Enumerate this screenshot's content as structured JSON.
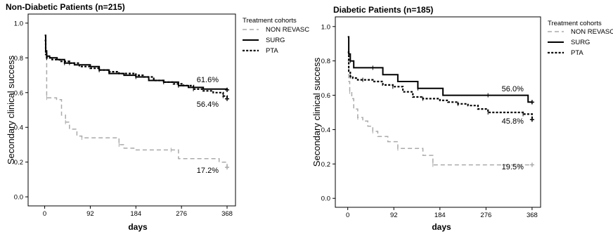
{
  "chart_data": [
    {
      "type": "line",
      "title": "Non-Diabetic Patients (n=215)",
      "xlabel": "days",
      "ylabel": "Secondary clinical success",
      "xlim": [
        -15,
        385
      ],
      "ylim": [
        -0.04,
        1.04
      ],
      "xticks": [
        "0",
        "92",
        "184",
        "276",
        "368"
      ],
      "yticks": [
        "0.0",
        "0.2",
        "0.4",
        "0.6",
        "0.8",
        "1.0"
      ],
      "legend": {
        "title": "Treatment cohorts",
        "position": "top-right-outside"
      },
      "series": [
        {
          "name": "NON REVASC",
          "color": "#aaaaaa",
          "dash": "dash",
          "x": [
            0,
            2,
            4,
            24,
            34,
            42,
            50,
            65,
            75,
            88,
            120,
            150,
            160,
            180,
            255,
            270,
            352,
            368
          ],
          "y": [
            0.92,
            0.82,
            0.57,
            0.56,
            0.47,
            0.43,
            0.39,
            0.35,
            0.34,
            0.34,
            0.34,
            0.3,
            0.28,
            0.27,
            0.27,
            0.22,
            0.2,
            0.17
          ],
          "end_label": "17.2%"
        },
        {
          "name": "SURG",
          "color": "#000000",
          "dash": "solid",
          "x": [
            0,
            2,
            4,
            10,
            25,
            40,
            60,
            92,
            110,
            130,
            160,
            184,
            210,
            240,
            270,
            290,
            320,
            368
          ],
          "y": [
            0.93,
            0.84,
            0.81,
            0.8,
            0.79,
            0.77,
            0.76,
            0.75,
            0.73,
            0.71,
            0.7,
            0.69,
            0.67,
            0.66,
            0.64,
            0.63,
            0.62,
            0.616
          ],
          "end_label": "61.6%"
        },
        {
          "name": "PTA",
          "color": "#000000",
          "dash": "dot",
          "x": [
            0,
            2,
            4,
            15,
            30,
            50,
            70,
            92,
            110,
            130,
            150,
            184,
            200,
            220,
            240,
            260,
            280,
            300,
            320,
            340,
            360,
            368
          ],
          "y": [
            0.9,
            0.82,
            0.8,
            0.79,
            0.78,
            0.77,
            0.75,
            0.74,
            0.73,
            0.72,
            0.71,
            0.7,
            0.69,
            0.67,
            0.66,
            0.65,
            0.64,
            0.62,
            0.61,
            0.6,
            0.58,
            0.564
          ],
          "end_label": "56.4%"
        }
      ]
    },
    {
      "type": "line",
      "title": "Diabetic Patients (n=185)",
      "xlabel": "days",
      "ylabel": "Secondary clinical success",
      "xlim": [
        -15,
        385
      ],
      "ylim": [
        -0.04,
        1.04
      ],
      "xticks": [
        "0",
        "92",
        "184",
        "276",
        "368"
      ],
      "yticks": [
        "0.0",
        "0.2",
        "0.4",
        "0.6",
        "0.8",
        "1.0"
      ],
      "legend": {
        "title": "Treatment cohorts",
        "position": "top-right-outside"
      },
      "series": [
        {
          "name": "NON REVASC",
          "color": "#aaaaaa",
          "dash": "dash",
          "x": [
            0,
            2,
            4,
            8,
            12,
            20,
            30,
            40,
            50,
            60,
            80,
            100,
            130,
            150,
            170,
            368
          ],
          "y": [
            0.8,
            0.68,
            0.62,
            0.58,
            0.52,
            0.47,
            0.45,
            0.42,
            0.39,
            0.36,
            0.33,
            0.29,
            0.29,
            0.25,
            0.195,
            0.195
          ],
          "end_label": "19.5%"
        },
        {
          "name": "SURG",
          "color": "#000000",
          "dash": "solid",
          "x": [
            0,
            2,
            5,
            12,
            30,
            50,
            70,
            100,
            140,
            190,
            240,
            280,
            330,
            360,
            368
          ],
          "y": [
            0.94,
            0.84,
            0.8,
            0.76,
            0.76,
            0.76,
            0.72,
            0.68,
            0.64,
            0.6,
            0.6,
            0.6,
            0.6,
            0.56,
            0.56
          ],
          "end_label": "56.0%"
        },
        {
          "name": "PTA",
          "color": "#000000",
          "dash": "dot",
          "x": [
            0,
            2,
            5,
            10,
            20,
            30,
            50,
            70,
            90,
            110,
            130,
            150,
            184,
            200,
            220,
            240,
            260,
            280,
            300,
            330,
            350,
            368
          ],
          "y": [
            0.85,
            0.74,
            0.71,
            0.7,
            0.69,
            0.69,
            0.68,
            0.66,
            0.65,
            0.62,
            0.59,
            0.58,
            0.57,
            0.56,
            0.55,
            0.54,
            0.52,
            0.5,
            0.5,
            0.5,
            0.49,
            0.458
          ],
          "end_label": "45.8%"
        }
      ]
    }
  ]
}
